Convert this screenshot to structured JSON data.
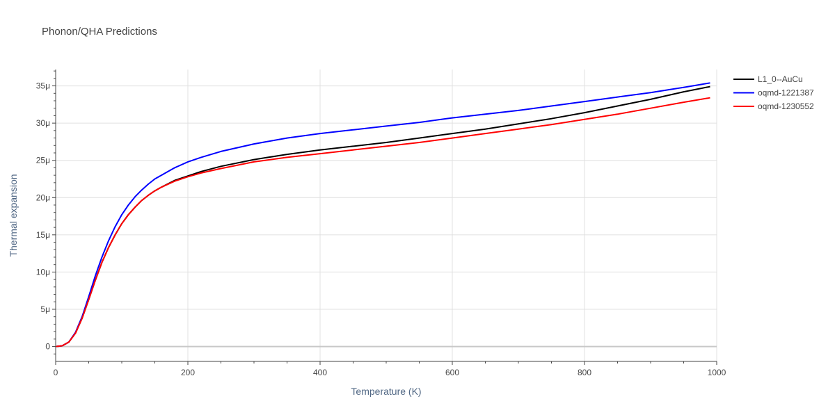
{
  "chart_data": {
    "type": "line",
    "title": "Phonon/QHA Predictions",
    "xlabel": "Temperature (K)",
    "ylabel": "Thermal expansion",
    "xlim": [
      0,
      1000
    ],
    "ylim": [
      -2,
      37.2
    ],
    "x_ticks": [
      0,
      200,
      400,
      600,
      800,
      1000
    ],
    "x_tick_labels": [
      "0",
      "200",
      "400",
      "600",
      "800",
      "1000"
    ],
    "y_ticks": [
      0,
      5,
      10,
      15,
      20,
      25,
      30,
      35
    ],
    "y_tick_labels": [
      "0",
      "5μ",
      "10μ",
      "15μ",
      "20μ",
      "25μ",
      "30μ",
      "35μ"
    ],
    "grid": true,
    "legend_position": "top-right",
    "series": [
      {
        "name": "L1_0--AuCu",
        "color": "#000000",
        "x": [
          0,
          10,
          20,
          30,
          40,
          50,
          60,
          70,
          80,
          90,
          100,
          110,
          120,
          130,
          140,
          150,
          160,
          180,
          200,
          220,
          250,
          300,
          350,
          400,
          450,
          500,
          550,
          600,
          650,
          700,
          750,
          800,
          850,
          900,
          950,
          990
        ],
        "y": [
          0,
          0.1,
          0.6,
          1.8,
          3.8,
          6.3,
          8.9,
          11.3,
          13.3,
          15.0,
          16.5,
          17.7,
          18.7,
          19.6,
          20.3,
          20.9,
          21.4,
          22.3,
          22.9,
          23.5,
          24.2,
          25.1,
          25.8,
          26.4,
          26.9,
          27.4,
          28.0,
          28.6,
          29.2,
          29.9,
          30.6,
          31.4,
          32.3,
          33.2,
          34.2,
          34.9
        ]
      },
      {
        "name": "oqmd-1221387",
        "color": "#0000ff",
        "x": [
          0,
          10,
          20,
          30,
          40,
          50,
          60,
          70,
          80,
          90,
          100,
          110,
          120,
          130,
          140,
          150,
          160,
          180,
          200,
          220,
          250,
          300,
          350,
          400,
          450,
          500,
          550,
          600,
          650,
          700,
          750,
          800,
          850,
          900,
          950,
          990
        ],
        "y": [
          0,
          0.1,
          0.6,
          1.9,
          4.0,
          6.7,
          9.5,
          12.0,
          14.2,
          16.1,
          17.7,
          19.0,
          20.1,
          21.0,
          21.8,
          22.5,
          23.0,
          24.0,
          24.8,
          25.4,
          26.2,
          27.2,
          28.0,
          28.6,
          29.1,
          29.6,
          30.1,
          30.7,
          31.2,
          31.7,
          32.3,
          32.9,
          33.5,
          34.1,
          34.8,
          35.4
        ]
      },
      {
        "name": "oqmd-1230552",
        "color": "#ff0000",
        "x": [
          0,
          10,
          20,
          30,
          40,
          50,
          60,
          70,
          80,
          90,
          100,
          110,
          120,
          130,
          140,
          150,
          160,
          180,
          200,
          220,
          250,
          300,
          350,
          400,
          450,
          500,
          550,
          600,
          650,
          700,
          750,
          800,
          850,
          900,
          950,
          990
        ],
        "y": [
          0,
          0.1,
          0.6,
          1.8,
          3.8,
          6.3,
          8.9,
          11.3,
          13.3,
          15.0,
          16.5,
          17.7,
          18.7,
          19.6,
          20.3,
          20.9,
          21.4,
          22.2,
          22.8,
          23.3,
          23.9,
          24.8,
          25.4,
          25.9,
          26.4,
          26.9,
          27.4,
          28.0,
          28.6,
          29.2,
          29.8,
          30.5,
          31.2,
          32.0,
          32.8,
          33.4
        ]
      }
    ]
  }
}
